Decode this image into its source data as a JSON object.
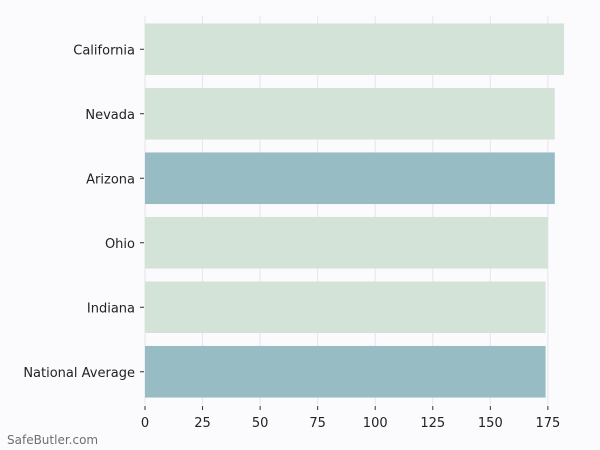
{
  "chart_data": {
    "type": "bar",
    "orientation": "horizontal",
    "categories": [
      "California",
      "Nevada",
      "Arizona",
      "Ohio",
      "Indiana",
      "National Average"
    ],
    "values": [
      182,
      178,
      178,
      175,
      174,
      174
    ],
    "bar_colors": [
      "#d4e3d8",
      "#d4e3d8",
      "#97bcc4",
      "#d4e3d8",
      "#d4e3d8",
      "#97bcc4"
    ],
    "xticks": [
      0,
      25,
      50,
      75,
      100,
      125,
      150,
      175
    ],
    "xlim": [
      0,
      182
    ],
    "grid": true,
    "title": "",
    "xlabel": "",
    "ylabel": ""
  },
  "watermark": "SafeButler.com"
}
